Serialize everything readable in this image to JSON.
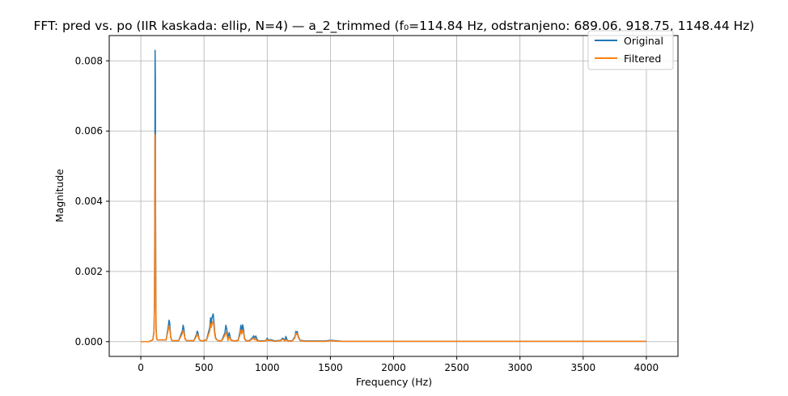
{
  "chart_data": {
    "type": "line",
    "title": "FFT: pred vs. po (IIR kaskada: ellip, N=4) — a_2_trimmed (f₀=114.84 Hz, odstranjeno: 689.06, 918.75, 1148.44 Hz)",
    "xlabel": "Frequency (Hz)",
    "ylabel": "Magnitude",
    "xlim": [
      -250,
      4250
    ],
    "ylim": [
      -0.00042,
      0.00872
    ],
    "xticks": [
      0,
      500,
      1000,
      1500,
      2000,
      2500,
      3000,
      3500,
      4000
    ],
    "xtick_labels": [
      "0",
      "500",
      "1000",
      "1500",
      "2000",
      "2500",
      "3000",
      "3500",
      "4000"
    ],
    "yticks": [
      0.0,
      0.002,
      0.004,
      0.006,
      0.008
    ],
    "ytick_labels": [
      "0.000",
      "0.002",
      "0.004",
      "0.006",
      "0.008"
    ],
    "grid": true,
    "legend_position": "top-right",
    "series": [
      {
        "name": "Original",
        "color": "#1f77b4",
        "x": [
          0,
          60,
          95,
          104,
          108,
          111,
          113,
          115,
          117,
          119,
          121,
          125,
          130,
          150,
          200,
          218,
          223,
          228,
          236,
          245,
          300,
          328,
          335,
          341,
          349,
          360,
          420,
          440,
          446,
          452,
          462,
          480,
          520,
          545,
          552,
          556,
          562,
          568,
          573,
          578,
          584,
          592,
          610,
          640,
          665,
          673,
          680,
          690,
          699,
          712,
          740,
          770,
          785,
          792,
          798,
          806,
          813,
          820,
          832,
          860,
          885,
          893,
          900,
          910,
          918,
          926,
          945,
          990,
          1000,
          1010,
          1025,
          1060,
          1110,
          1120,
          1130,
          1140,
          1148,
          1157,
          1170,
          1200,
          1220,
          1226,
          1232,
          1238,
          1246,
          1260,
          1300,
          1460,
          1500,
          1560,
          1600,
          2000,
          2560,
          2600,
          3000,
          3500,
          4000
        ],
        "y": [
          0.0,
          0.0,
          5e-05,
          0.0003,
          0.0011,
          0.0045,
          0.0083,
          0.0075,
          0.0036,
          0.0012,
          0.0004,
          0.0001,
          5e-05,
          5e-05,
          5e-05,
          0.00045,
          0.00061,
          0.00055,
          0.00015,
          3e-05,
          3e-05,
          0.0003,
          0.00047,
          0.00036,
          0.0001,
          3e-05,
          3e-05,
          0.0002,
          0.0003,
          0.00026,
          6e-05,
          2e-05,
          5e-05,
          0.0004,
          0.00068,
          0.0005,
          0.00066,
          0.00075,
          0.00079,
          0.0006,
          0.0003,
          0.0001,
          3e-05,
          3e-05,
          0.00025,
          0.00047,
          0.00035,
          8e-05,
          0.00026,
          5e-05,
          2e-05,
          4e-05,
          0.00028,
          0.00047,
          0.0003,
          0.00048,
          0.00035,
          0.0001,
          3e-05,
          3e-05,
          0.00012,
          0.00017,
          0.0001,
          0.00016,
          8e-05,
          3e-05,
          2e-05,
          3e-05,
          0.0001,
          4e-05,
          6e-05,
          2e-05,
          4e-05,
          0.0001,
          8e-05,
          4e-05,
          0.00015,
          5e-05,
          2e-05,
          3e-05,
          0.00015,
          0.00029,
          0.00025,
          0.00029,
          0.00015,
          4e-05,
          2e-05,
          2e-05,
          4e-05,
          2e-05,
          1e-05,
          1e-05,
          1e-05,
          1e-05,
          1e-05,
          1e-05,
          1e-05
        ]
      },
      {
        "name": "Filtered",
        "color": "#ff7f0e",
        "x": [
          0,
          60,
          95,
          104,
          108,
          111,
          113,
          115,
          117,
          119,
          121,
          125,
          130,
          150,
          200,
          218,
          223,
          228,
          236,
          245,
          300,
          328,
          335,
          341,
          349,
          360,
          420,
          440,
          446,
          452,
          462,
          480,
          520,
          545,
          552,
          556,
          562,
          568,
          573,
          578,
          584,
          592,
          610,
          640,
          665,
          673,
          680,
          690,
          699,
          712,
          740,
          770,
          785,
          792,
          798,
          806,
          813,
          820,
          832,
          860,
          885,
          893,
          900,
          910,
          918,
          926,
          945,
          990,
          1000,
          1010,
          1025,
          1060,
          1110,
          1120,
          1130,
          1140,
          1148,
          1157,
          1170,
          1200,
          1220,
          1226,
          1232,
          1238,
          1246,
          1260,
          1300,
          1460,
          1500,
          1560,
          1600,
          2000,
          2560,
          2600,
          3000,
          3500,
          4000
        ],
        "y": [
          0.0,
          0.0,
          5e-05,
          0.00025,
          0.0009,
          0.0035,
          0.0059,
          0.0054,
          0.0026,
          0.0009,
          0.0003,
          0.0001,
          5e-05,
          5e-05,
          5e-05,
          0.00035,
          0.00045,
          0.0004,
          0.00012,
          3e-05,
          3e-05,
          0.00022,
          0.00032,
          0.00026,
          8e-05,
          3e-05,
          3e-05,
          0.00015,
          0.00022,
          0.00018,
          5e-05,
          2e-05,
          4e-05,
          0.0003,
          0.00052,
          0.0004,
          0.00048,
          0.00055,
          0.00058,
          0.00045,
          0.00022,
          8e-05,
          3e-05,
          2e-05,
          0.00018,
          0.00028,
          0.0002,
          3e-05,
          0.00015,
          4e-05,
          2e-05,
          3e-05,
          0.0002,
          0.00033,
          0.00022,
          0.00033,
          0.00025,
          8e-05,
          2e-05,
          2e-05,
          8e-05,
          0.00011,
          5e-05,
          8e-05,
          3e-05,
          2e-05,
          1e-05,
          2e-05,
          6e-05,
          3e-05,
          4e-05,
          1e-05,
          3e-05,
          7e-05,
          5e-05,
          2e-05,
          6e-05,
          3e-05,
          1e-05,
          2e-05,
          0.00012,
          0.00024,
          0.0002,
          0.00024,
          0.00012,
          3e-05,
          1e-05,
          1e-05,
          3e-05,
          1e-05,
          1e-05,
          1e-05,
          1e-05,
          1e-05,
          1e-05,
          1e-05,
          1e-05
        ]
      }
    ]
  }
}
